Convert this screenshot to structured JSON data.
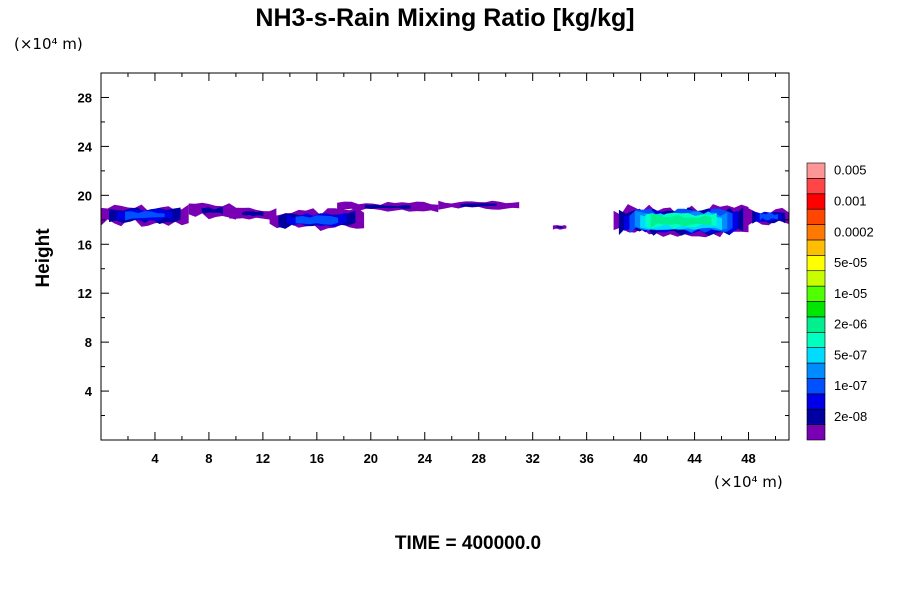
{
  "chart_data": {
    "type": "heatmap",
    "title": "NH3-s-Rain Mixing Ratio [kg/kg]",
    "ylabel": "Height",
    "x_unit": "(×10⁴ m)",
    "y_unit": "(×10⁴ m)",
    "time_label": "TIME = 400000.0",
    "xlim": [
      0,
      51
    ],
    "ylim": [
      0,
      30
    ],
    "x_ticks": [
      "4",
      "8",
      "12",
      "16",
      "20",
      "24",
      "28",
      "32",
      "36",
      "40",
      "44",
      "48"
    ],
    "y_ticks": [
      "4",
      "8",
      "12",
      "16",
      "20",
      "24",
      "28"
    ],
    "colorbar": {
      "colors": [
        "#7a00b4",
        "#0000a0",
        "#0000e6",
        "#0050ff",
        "#008cff",
        "#00dcff",
        "#00ffc0",
        "#00f090",
        "#00e600",
        "#50ff00",
        "#c8ff00",
        "#ffff00",
        "#ffbe00",
        "#ff7800",
        "#ff4600",
        "#ff0000",
        "#ff4646",
        "#ff9696"
      ],
      "labels": [
        "2e-08",
        "1e-07",
        "5e-07",
        "2e-06",
        "1e-05",
        "5e-05",
        "0.0002",
        "0.001",
        "0.005"
      ]
    },
    "regions": [
      {
        "x": [
          0,
          6.5
        ],
        "y": [
          17.4,
          19.3
        ],
        "level": "1e-07"
      },
      {
        "x": [
          6.5,
          10
        ],
        "y": [
          18.0,
          19.5
        ],
        "level": "2e-08"
      },
      {
        "x": [
          9.5,
          13
        ],
        "y": [
          18.0,
          19.0
        ],
        "level": "2e-08"
      },
      {
        "x": [
          12.5,
          19.5
        ],
        "y": [
          17.0,
          19.0
        ],
        "level": "1e-07"
      },
      {
        "x": [
          17.5,
          25
        ],
        "y": [
          18.6,
          19.5
        ],
        "level": "2e-08"
      },
      {
        "x": [
          25,
          31
        ],
        "y": [
          18.8,
          19.6
        ],
        "level": "2e-08"
      },
      {
        "x": [
          33.5,
          34.5
        ],
        "y": [
          17.2,
          17.6
        ],
        "level": "2e-08"
      },
      {
        "x": [
          38,
          48
        ],
        "y": [
          16.5,
          19.3
        ],
        "level": "2e-06"
      },
      {
        "x": [
          48,
          51
        ],
        "y": [
          17.5,
          19.0
        ],
        "level": "1e-07"
      }
    ]
  }
}
